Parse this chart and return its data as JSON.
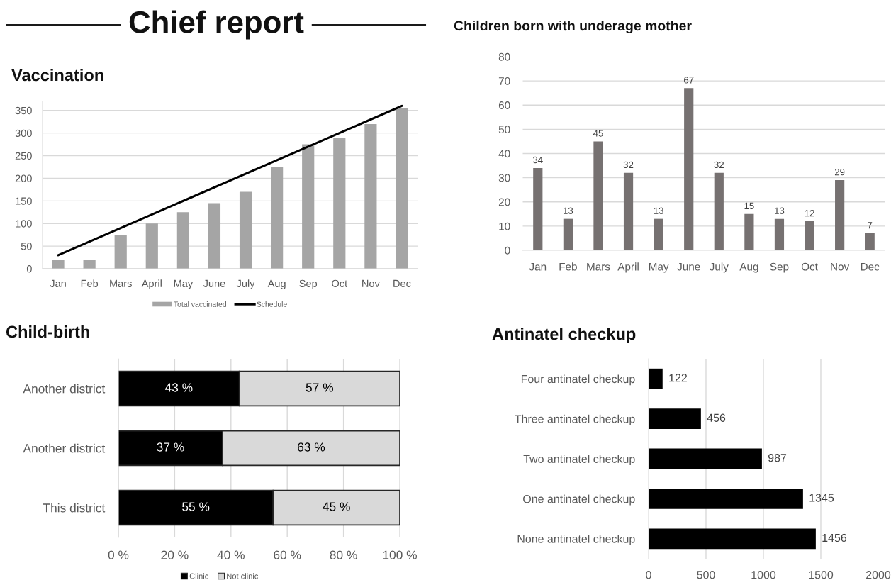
{
  "chart_data": [
    {
      "type": "bar",
      "title": "Chief report",
      "subtitle": "Vaccination",
      "categories": [
        "Jan",
        "Feb",
        "Mars",
        "April",
        "May",
        "June",
        "July",
        "Aug",
        "Sep",
        "Oct",
        "Nov",
        "Dec"
      ],
      "series": [
        {
          "name": "Total vaccinated",
          "color": "#a5a5a5",
          "values": [
            20,
            20,
            75,
            100,
            125,
            145,
            170,
            225,
            275,
            290,
            320,
            355
          ]
        },
        {
          "name": "Schedule",
          "type": "line",
          "color": "#000000",
          "x": [
            "Jan",
            "Dec"
          ],
          "values": [
            30,
            360
          ]
        }
      ],
      "ylim": [
        0,
        370
      ],
      "yticks": [
        0,
        50,
        100,
        150,
        200,
        250,
        300,
        350
      ],
      "grid": "y",
      "legend": "bottom"
    },
    {
      "type": "bar",
      "title": "Children born with underage mother",
      "categories": [
        "Jan",
        "Feb",
        "Mars",
        "April",
        "May",
        "June",
        "July",
        "Aug",
        "Sep",
        "Oct",
        "Nov",
        "Dec"
      ],
      "values": [
        34,
        13,
        45,
        32,
        13,
        67,
        32,
        15,
        13,
        12,
        29,
        7
      ],
      "color": "#767171",
      "ylim": [
        0,
        80
      ],
      "yticks": [
        0,
        10,
        20,
        30,
        40,
        50,
        60,
        70,
        80
      ],
      "grid": "y",
      "data_labels": true
    },
    {
      "type": "bar",
      "orientation": "horizontal",
      "stacked": true,
      "title": "Child-birth",
      "categories": [
        "Another district",
        "Another district",
        "This district"
      ],
      "series": [
        {
          "name": "Clinic",
          "color": "#000000",
          "values": [
            43,
            37,
            55
          ],
          "value_labels": [
            "43 %",
            "37 %",
            "55 %"
          ]
        },
        {
          "name": "Not clinic",
          "color": "#d9d9d9",
          "values": [
            57,
            63,
            45
          ],
          "value_labels": [
            "57 %",
            "63 %",
            "45 %"
          ]
        }
      ],
      "xlim": [
        0,
        100
      ],
      "xticks": [
        {
          "value": 0,
          "label": "0 %"
        },
        {
          "value": 20,
          "label": "20 %"
        },
        {
          "value": 40,
          "label": "40 %"
        },
        {
          "value": 60,
          "label": "60 %"
        },
        {
          "value": 80,
          "label": "80 %"
        },
        {
          "value": 100,
          "label": "100 %"
        }
      ],
      "grid": "x",
      "legend": "bottom"
    },
    {
      "type": "bar",
      "orientation": "horizontal",
      "title": "Antinatel checkup",
      "categories": [
        "Four antinatel checkup",
        "Three antinatel checkup",
        "Two antinatel checkup",
        "One antinatel checkup",
        "None antinatel checkup"
      ],
      "values": [
        122,
        456,
        987,
        1345,
        1456
      ],
      "color": "#000000",
      "xlim": [
        0,
        2000
      ],
      "xticks": [
        0,
        500,
        1000,
        1500,
        2000
      ],
      "grid": "x",
      "data_labels": true
    }
  ]
}
